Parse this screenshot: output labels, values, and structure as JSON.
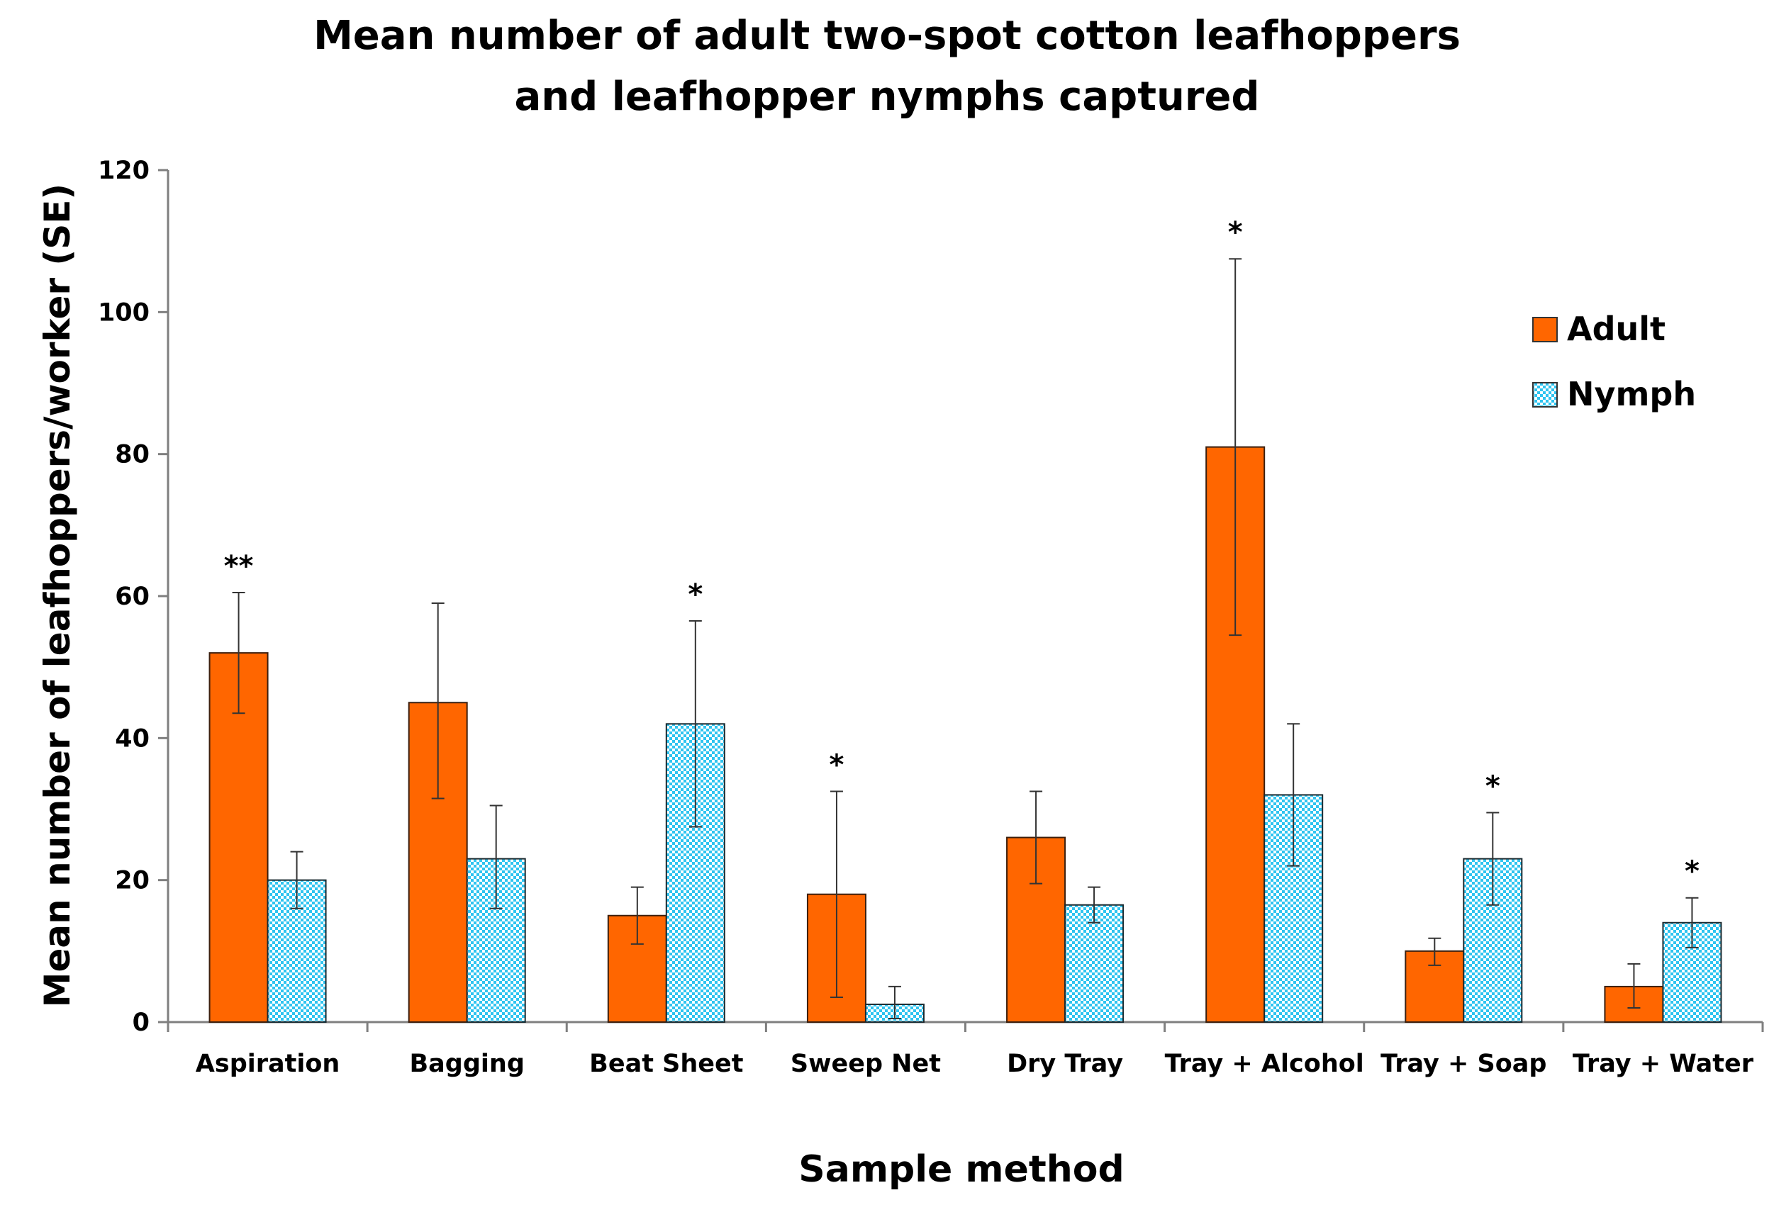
{
  "chart_data": {
    "type": "bar",
    "title": [
      "Mean number of adult two-spot cotton leafhoppers",
      "and leafhopper nymphs captured"
    ],
    "xlabel": "Sample method",
    "ylabel": "Mean number of leafhoppers/worker (SE)",
    "ylim": [
      0,
      120
    ],
    "yticks": [
      0,
      20,
      40,
      60,
      80,
      100,
      120
    ],
    "categories": [
      "Aspiration",
      "Bagging",
      "Beat Sheet",
      "Sweep Net",
      "Dry Tray",
      "Tray + Alcohol",
      "Tray + Soap",
      "Tray + Water"
    ],
    "series": [
      {
        "name": "Adult",
        "color": "#ff6600",
        "pattern": "solid",
        "values": [
          52,
          45,
          15,
          18,
          26,
          81,
          10,
          5
        ],
        "error_low": [
          43.5,
          31.5,
          11,
          3.5,
          19.5,
          54.5,
          8,
          2
        ],
        "error_high": [
          60.5,
          59,
          19,
          32.5,
          32.5,
          107.5,
          11.8,
          8.2
        ]
      },
      {
        "name": "Nymph",
        "color": "#33ccff",
        "pattern": "checkered",
        "values": [
          20,
          23,
          42,
          2.5,
          16.5,
          32,
          23,
          14
        ],
        "error_low": [
          16,
          16,
          27.5,
          0.5,
          14,
          22,
          16.5,
          10.5
        ],
        "error_high": [
          24,
          30.5,
          56.5,
          5,
          19,
          42,
          29.5,
          17.5
        ]
      }
    ],
    "annotations": [
      {
        "category": "Aspiration",
        "series": "Adult",
        "text": "**"
      },
      {
        "category": "Beat Sheet",
        "series": "Nymph",
        "text": "*"
      },
      {
        "category": "Sweep Net",
        "series": "Adult",
        "text": "*"
      },
      {
        "category": "Tray + Alcohol",
        "series": "Adult",
        "text": "*"
      },
      {
        "category": "Tray + Soap",
        "series": "Nymph",
        "text": "*"
      },
      {
        "category": "Tray + Water",
        "series": "Nymph",
        "text": "*"
      }
    ],
    "legend_position": "top-right",
    "grid": false
  }
}
